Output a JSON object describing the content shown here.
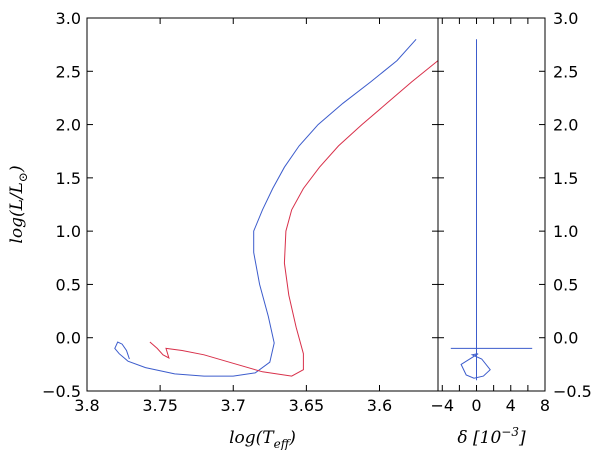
{
  "chart_data": [
    {
      "type": "line",
      "xlabel": "log(T",
      "xlabel_sub": "eff",
      "xlabel_close": ")",
      "ylabel": "log(L/L",
      "ylabel_sub": "⊙",
      "ylabel_close": ")",
      "xlim": [
        3.8,
        3.56
      ],
      "ylim": [
        -0.5,
        3.0
      ],
      "x_ticks": [
        "3.8",
        "3.75",
        "3.7",
        "3.65",
        "3.6"
      ],
      "x_tick_values": [
        3.8,
        3.75,
        3.7,
        3.65,
        3.6
      ],
      "y_ticks": [
        "3.0",
        "2.5",
        "2.0",
        "1.5",
        "1.0",
        "0.5",
        "0.0",
        "−0.5"
      ],
      "y_tick_values": [
        3.0,
        2.5,
        2.0,
        1.5,
        1.0,
        0.5,
        0.0,
        -0.5
      ],
      "grid": false,
      "series": [
        {
          "color": "#3c5ccc",
          "x": [
            3.771,
            3.773,
            3.776,
            3.779,
            3.781,
            3.778,
            3.772,
            3.76,
            3.74,
            3.72,
            3.7,
            3.685,
            3.675,
            3.672,
            3.676,
            3.682,
            3.686,
            3.686,
            3.68,
            3.673,
            3.665,
            3.655,
            3.642,
            3.625,
            3.606,
            3.588,
            3.575
          ],
          "y": [
            -0.2,
            -0.12,
            -0.06,
            -0.04,
            -0.1,
            -0.15,
            -0.22,
            -0.28,
            -0.34,
            -0.36,
            -0.36,
            -0.33,
            -0.23,
            -0.05,
            0.2,
            0.5,
            0.8,
            1.0,
            1.2,
            1.4,
            1.6,
            1.8,
            2.0,
            2.2,
            2.4,
            2.6,
            2.8
          ]
        },
        {
          "color": "#d8304a",
          "x": [
            3.757,
            3.752,
            3.748,
            3.744,
            3.746,
            3.735,
            3.72,
            3.7,
            3.68,
            3.66,
            3.652,
            3.652,
            3.657,
            3.662,
            3.665,
            3.664,
            3.66,
            3.652,
            3.641,
            3.628,
            3.612,
            3.595,
            3.578,
            3.56
          ],
          "y": [
            -0.04,
            -0.1,
            -0.16,
            -0.19,
            -0.1,
            -0.12,
            -0.16,
            -0.24,
            -0.32,
            -0.36,
            -0.3,
            -0.15,
            0.1,
            0.4,
            0.7,
            1.0,
            1.2,
            1.4,
            1.6,
            1.8,
            2.0,
            2.2,
            2.4,
            2.6
          ]
        }
      ]
    },
    {
      "type": "line",
      "xlabel": "δ [10",
      "xlabel_sup": "−3",
      "xlabel_close": "]",
      "xlim": [
        -4.5,
        8.0
      ],
      "ylim": [
        -0.5,
        3.0
      ],
      "x_ticks": [
        "−4",
        "0",
        "4",
        "8"
      ],
      "x_tick_values": [
        -4,
        0,
        4,
        8
      ],
      "x_minor_ticks": [
        -2,
        2,
        6
      ],
      "y_ticks": [
        "3.0",
        "2.5",
        "2.0",
        "1.5",
        "1.0",
        "0.5",
        "0.0",
        "−0.5"
      ],
      "y_tick_values": [
        3.0,
        2.5,
        2.0,
        1.5,
        1.0,
        0.5,
        0.0,
        -0.5
      ],
      "grid": false,
      "series": [
        {
          "color": "#3c5ccc",
          "x": [
            0,
            0,
            0,
            0,
            0,
            0
          ],
          "y": [
            2.8,
            1.5,
            0.0,
            -0.1,
            -0.3,
            -0.4
          ]
        },
        {
          "color": "#3c5ccc",
          "x": [
            -3.0,
            6.5
          ],
          "y": [
            -0.1,
            -0.1
          ]
        },
        {
          "color": "#3c5ccc",
          "x": [
            0.2,
            -1.8,
            -1.2,
            -0.3,
            0.8,
            1.6,
            0.6,
            -0.5,
            0.1
          ],
          "y": [
            -0.15,
            -0.25,
            -0.35,
            -0.38,
            -0.36,
            -0.3,
            -0.2,
            -0.16,
            -0.15
          ]
        }
      ]
    }
  ]
}
